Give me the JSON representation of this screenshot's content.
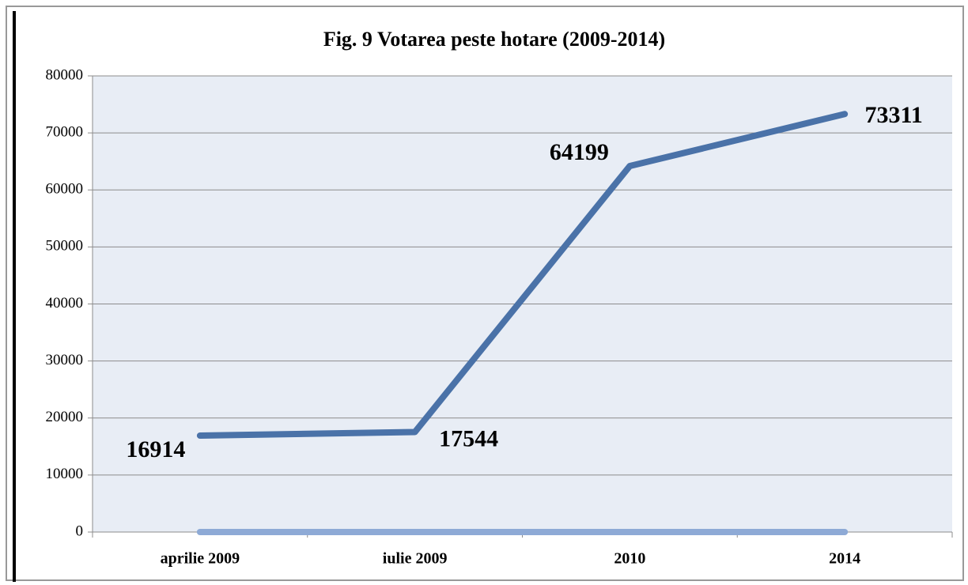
{
  "chart_data": {
    "type": "line",
    "title": "Fig. 9 Votarea peste hotare (2009-2014)",
    "categories": [
      "aprilie 2009",
      "iulie 2009",
      "2010",
      "2014"
    ],
    "series": [
      {
        "color": "#4a72a8",
        "values": [
          16914,
          17544,
          64199,
          73311
        ]
      },
      {
        "color": "#8eaad6",
        "values": [
          0,
          0,
          0,
          0
        ]
      }
    ],
    "ylim": [
      0,
      80000
    ],
    "yticks": [
      0,
      10000,
      20000,
      30000,
      40000,
      50000,
      60000,
      70000,
      80000
    ],
    "grid": true
  }
}
